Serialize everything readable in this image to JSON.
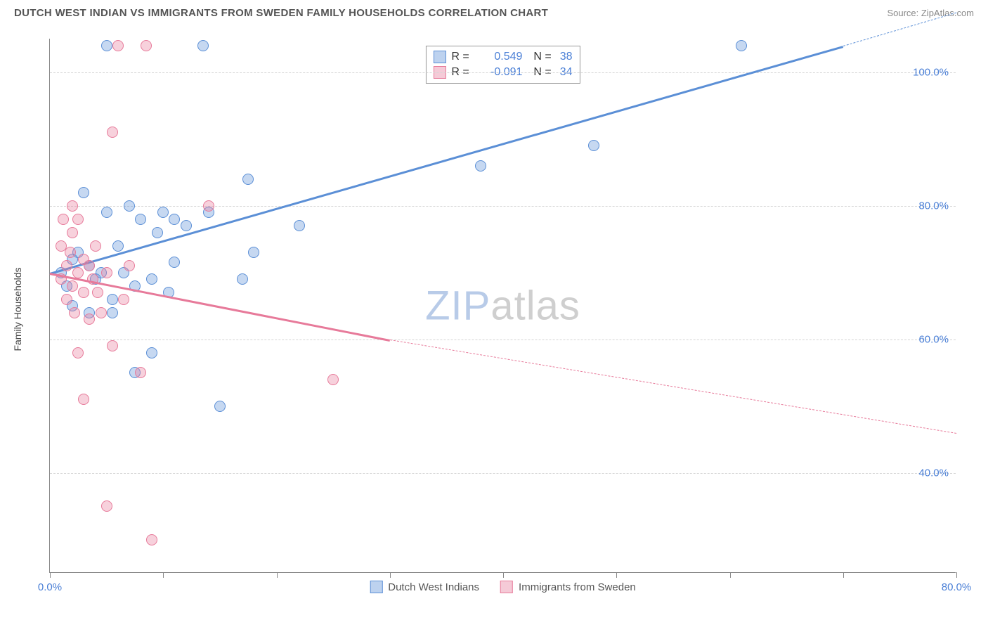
{
  "title": "DUTCH WEST INDIAN VS IMMIGRANTS FROM SWEDEN FAMILY HOUSEHOLDS CORRELATION CHART",
  "source": "Source: ZipAtlas.com",
  "ylabel": "Family Households",
  "watermark": {
    "prefix": "ZIP",
    "suffix": "atlas",
    "prefix_color": "#b8cbe8",
    "suffix_color": "#cfcfcf"
  },
  "chart": {
    "type": "scatter",
    "background_color": "#ffffff",
    "grid_color": "#d5d5d5",
    "axis_color": "#888888",
    "text_color": "#555555",
    "tick_label_color": "#4a7fd6",
    "title_fontsize": 15,
    "label_fontsize": 14,
    "tick_fontsize": 15,
    "xlim": [
      0,
      80
    ],
    "ylim": [
      25,
      105
    ],
    "y_gridlines": [
      40,
      60,
      80,
      100
    ],
    "ytick_labels": [
      "40.0%",
      "60.0%",
      "80.0%",
      "100.0%"
    ],
    "x_ticks": [
      0,
      10,
      20,
      30,
      40,
      50,
      60,
      70,
      80
    ],
    "x_first_label": "0.0%",
    "x_last_label": "80.0%",
    "marker_radius": 8,
    "marker_border_width": 1.5,
    "marker_fill_opacity": 0.35,
    "series": [
      {
        "name": "Dutch West Indians",
        "stroke": "#5b8fd6",
        "fill": "#5b8fd6",
        "r_value": "0.549",
        "n_value": "38",
        "trend": {
          "x1": 0,
          "y1": 70,
          "x2": 70,
          "y2": 104,
          "dash_to_x": 80,
          "dash_to_y": 109
        },
        "points": [
          [
            1,
            70
          ],
          [
            1.5,
            68
          ],
          [
            2,
            72
          ],
          [
            2,
            65
          ],
          [
            2.5,
            73
          ],
          [
            3,
            82
          ],
          [
            3.5,
            71
          ],
          [
            3.5,
            64
          ],
          [
            4,
            69
          ],
          [
            4.5,
            70
          ],
          [
            5,
            104
          ],
          [
            5,
            79
          ],
          [
            5.5,
            66
          ],
          [
            5.5,
            64
          ],
          [
            6,
            74
          ],
          [
            6.5,
            70
          ],
          [
            7,
            80
          ],
          [
            7.5,
            68
          ],
          [
            7.5,
            55
          ],
          [
            8,
            78
          ],
          [
            9,
            69
          ],
          [
            9,
            58
          ],
          [
            9.5,
            76
          ],
          [
            10,
            79
          ],
          [
            10.5,
            67
          ],
          [
            11,
            78
          ],
          [
            11,
            71.5
          ],
          [
            12,
            77
          ],
          [
            13.5,
            104
          ],
          [
            14,
            79
          ],
          [
            15,
            50
          ],
          [
            17,
            69
          ],
          [
            17.5,
            84
          ],
          [
            18,
            73
          ],
          [
            22,
            77
          ],
          [
            38,
            86
          ],
          [
            48,
            89
          ],
          [
            61,
            104
          ]
        ]
      },
      {
        "name": "Immigrants from Sweden",
        "stroke": "#e77a9a",
        "fill": "#e77a9a",
        "r_value": "-0.091",
        "n_value": "34",
        "trend": {
          "x1": 0,
          "y1": 70,
          "x2": 30,
          "y2": 60,
          "dash_to_x": 80,
          "dash_to_y": 46
        },
        "points": [
          [
            1,
            69
          ],
          [
            1,
            74
          ],
          [
            1.2,
            78
          ],
          [
            1.5,
            71
          ],
          [
            1.5,
            66
          ],
          [
            1.8,
            73
          ],
          [
            2,
            80
          ],
          [
            2,
            76
          ],
          [
            2,
            68
          ],
          [
            2.2,
            64
          ],
          [
            2.5,
            70
          ],
          [
            2.5,
            78
          ],
          [
            2.5,
            58
          ],
          [
            3,
            72
          ],
          [
            3,
            67
          ],
          [
            3,
            51
          ],
          [
            3.5,
            71
          ],
          [
            3.5,
            63
          ],
          [
            3.8,
            69
          ],
          [
            4,
            74
          ],
          [
            4.2,
            67
          ],
          [
            4.5,
            64
          ],
          [
            5,
            70
          ],
          [
            5,
            35
          ],
          [
            5.5,
            91
          ],
          [
            5.5,
            59
          ],
          [
            6,
            104
          ],
          [
            6.5,
            66
          ],
          [
            7,
            71
          ],
          [
            8,
            55
          ],
          [
            8.5,
            104
          ],
          [
            9,
            30
          ],
          [
            14,
            80
          ],
          [
            25,
            54
          ]
        ]
      }
    ]
  }
}
